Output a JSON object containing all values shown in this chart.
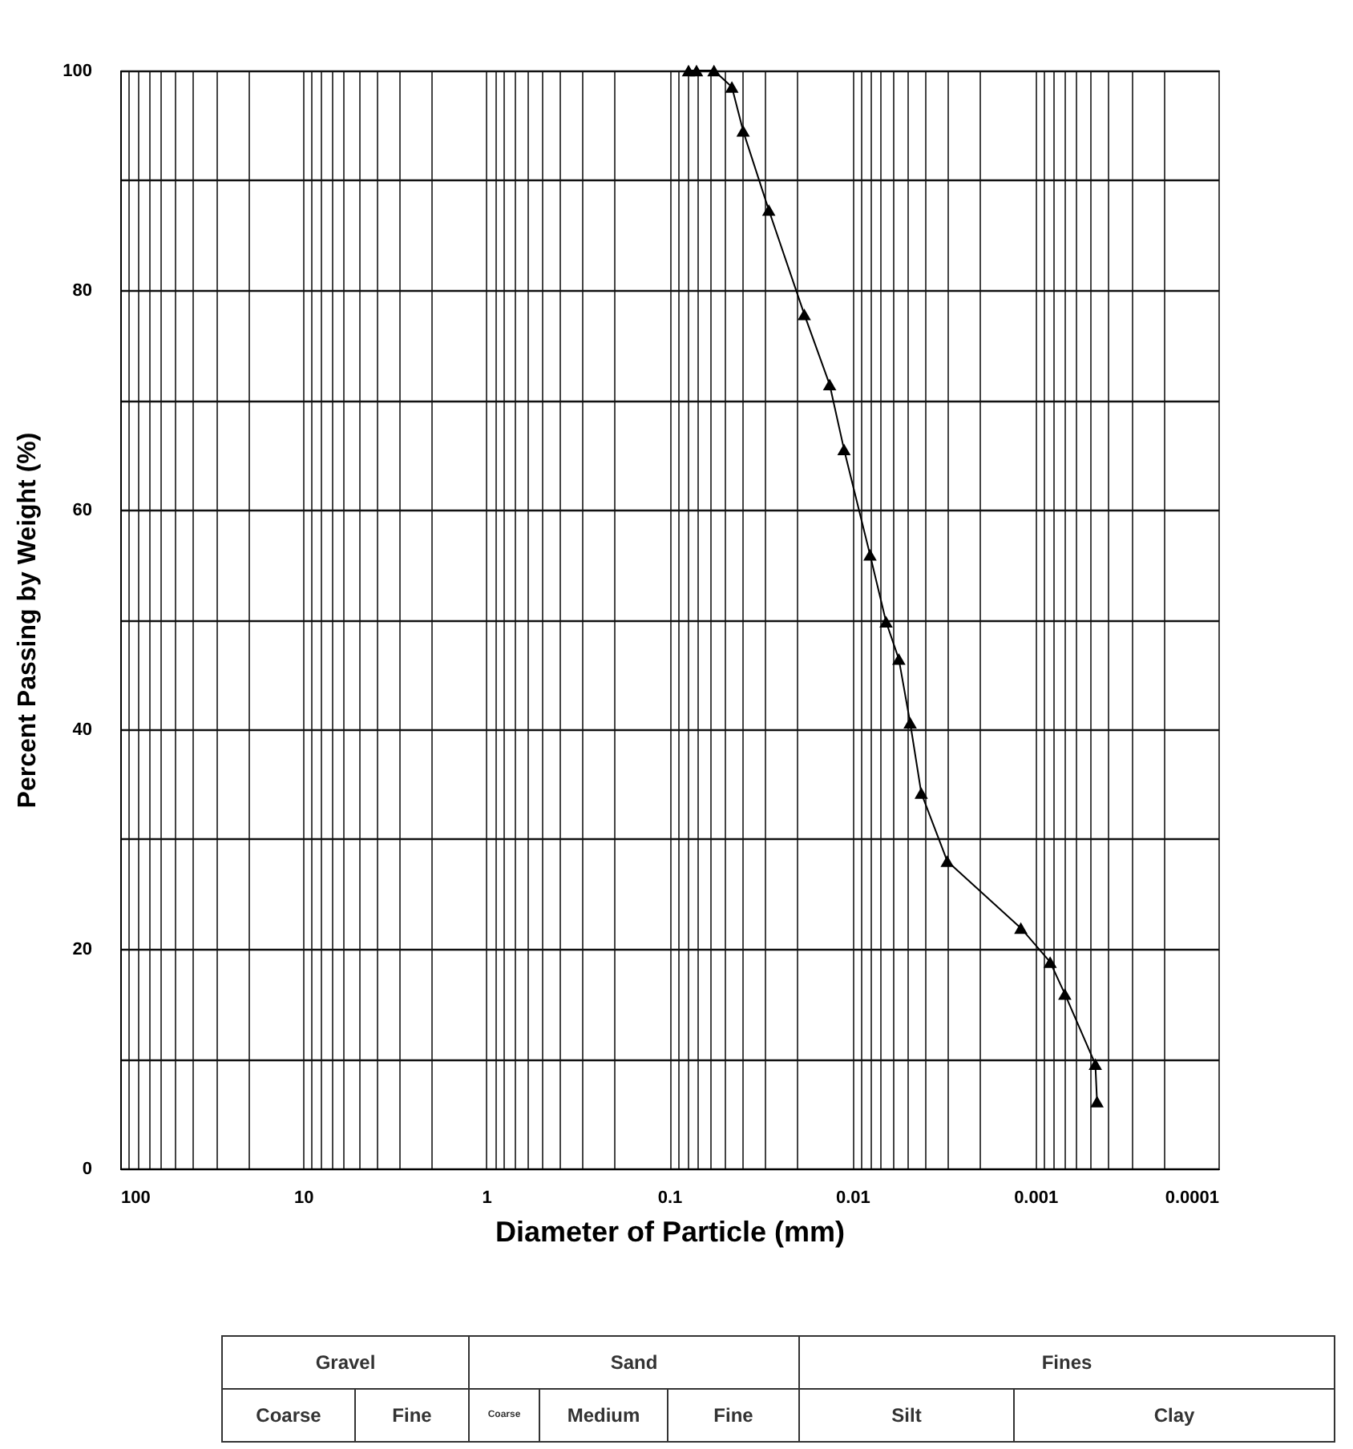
{
  "chart_data": {
    "type": "line",
    "xlabel": "Diameter of Particle (mm)",
    "ylabel": "Percent Passing by Weight (%)",
    "x": [
      0.0785,
      0.071,
      0.057,
      0.0455,
      0.0395,
      0.0286,
      0.0183,
      0.0133,
      0.0111,
      0.008,
      0.00654,
      0.00557,
      0.00483,
      0.0042,
      0.00303,
      0.0012,
      0.00083,
      0.00069,
      0.00047,
      0.00046
    ],
    "series": [
      {
        "color": "#000000",
        "values": [
          100,
          100,
          100,
          98.5,
          94.5,
          87.3,
          77.8,
          71.4,
          65.5,
          55.9,
          49.8,
          46.4,
          40.6,
          34.2,
          28.0,
          21.9,
          18.8,
          15.9,
          9.5,
          6.1
        ]
      }
    ],
    "log": "x",
    "xlim": [
      100,
      0.0001
    ],
    "ylim": [
      0,
      100
    ],
    "xticks": [
      100,
      {
        "value": 90,
        "label": null
      },
      {
        "value": 80,
        "label": null
      },
      {
        "value": 70,
        "label": null
      },
      {
        "value": 60,
        "label": null
      },
      {
        "value": 50,
        "label": null
      },
      {
        "value": 40,
        "label": null
      },
      {
        "value": 30,
        "label": null
      },
      {
        "value": 20,
        "label": null
      },
      10,
      {
        "value": 9,
        "label": null
      },
      {
        "value": 8,
        "label": null
      },
      {
        "value": 7,
        "label": null
      },
      {
        "value": 6,
        "label": null
      },
      {
        "value": 5,
        "label": null
      },
      {
        "value": 4,
        "label": null
      },
      {
        "value": 3,
        "label": null
      },
      {
        "value": 2,
        "label": null
      },
      1,
      {
        "value": 0.9,
        "label": null
      },
      {
        "value": 0.8,
        "label": null
      },
      {
        "value": 0.7,
        "label": null
      },
      {
        "value": 0.6,
        "label": null
      },
      {
        "value": 0.5,
        "label": null
      },
      {
        "value": 0.4,
        "label": null
      },
      {
        "value": 0.3,
        "label": null
      },
      {
        "value": 0.2,
        "label": null
      },
      0.1,
      {
        "value": 0.09,
        "label": null
      },
      {
        "value": 0.08,
        "label": null
      },
      {
        "value": 0.07,
        "label": null
      },
      {
        "value": 0.06,
        "label": null
      },
      {
        "value": 0.05,
        "label": null
      },
      {
        "value": 0.04,
        "label": null
      },
      {
        "value": 0.03,
        "label": null
      },
      {
        "value": 0.02,
        "label": null
      },
      0.01,
      {
        "value": 0.009,
        "label": null
      },
      {
        "value": 0.008,
        "label": null
      },
      {
        "value": 0.007,
        "label": null
      },
      {
        "value": 0.006,
        "label": null
      },
      {
        "value": 0.005,
        "label": null
      },
      {
        "value": 0.004,
        "label": null
      },
      {
        "value": 0.003,
        "label": null
      },
      {
        "value": 0.002,
        "label": null
      },
      0.001,
      {
        "value": 0.0009,
        "label": null
      },
      {
        "value": 0.0008,
        "label": null
      },
      {
        "value": 0.0007,
        "label": null
      },
      {
        "value": 0.0006,
        "label": null
      },
      {
        "value": 0.0005,
        "label": null
      },
      {
        "value": 0.0004,
        "label": null
      },
      {
        "value": 0.0003,
        "label": null
      },
      {
        "value": 0.0002,
        "label": null
      },
      0.0001
    ],
    "yticks": [
      0,
      {
        "value": 10,
        "label": null
      },
      20,
      {
        "value": 30,
        "label": null
      },
      40,
      {
        "value": 50,
        "label": null
      },
      60,
      {
        "value": 70,
        "label": null
      },
      80,
      {
        "value": 90,
        "label": null
      },
      100
    ],
    "grid": true,
    "marker": "triangle",
    "line_style": "solid",
    "annotations": [
      "Gravel",
      "Sand",
      "Fines",
      "Coarse",
      "Fine",
      "Coarse",
      "Medium",
      "Fine",
      "Silt",
      "Clay"
    ]
  }
}
